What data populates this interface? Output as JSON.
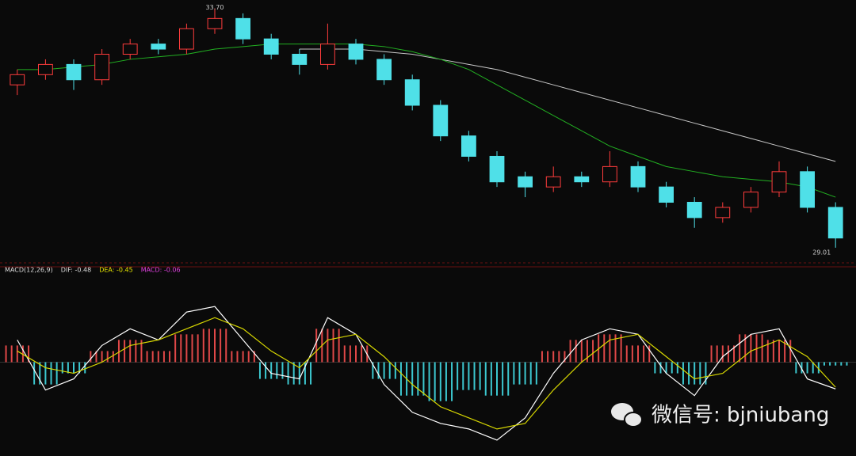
{
  "chart_data": [
    {
      "type": "candlestick",
      "open": [
        32.2,
        32.4,
        32.6,
        32.3,
        32.8,
        33.0,
        32.9,
        33.3,
        33.5,
        33.1,
        32.8,
        32.6,
        33.0,
        32.7,
        32.3,
        31.8,
        31.2,
        30.8,
        30.4,
        30.2,
        30.4,
        30.3,
        30.6,
        30.2,
        29.9,
        29.6,
        29.8,
        30.1,
        30.5,
        29.8
      ],
      "high": [
        32.5,
        32.7,
        32.7,
        32.9,
        33.1,
        33.1,
        33.4,
        33.7,
        33.6,
        33.2,
        32.9,
        33.4,
        33.1,
        32.8,
        32.4,
        31.9,
        31.3,
        30.9,
        30.5,
        30.6,
        30.5,
        30.9,
        30.7,
        30.3,
        30.0,
        29.9,
        30.2,
        30.7,
        30.6,
        29.9
      ],
      "low": [
        32.0,
        32.3,
        32.1,
        32.2,
        32.7,
        32.8,
        32.8,
        33.2,
        33.0,
        32.7,
        32.4,
        32.5,
        32.6,
        32.2,
        31.7,
        31.1,
        30.7,
        30.2,
        30.0,
        30.1,
        30.2,
        30.2,
        30.1,
        29.8,
        29.4,
        29.5,
        29.7,
        30.0,
        29.7,
        29.01
      ],
      "close": [
        32.4,
        32.6,
        32.3,
        32.8,
        33.0,
        32.9,
        33.3,
        33.5,
        33.1,
        32.8,
        32.6,
        33.0,
        32.7,
        32.3,
        31.8,
        31.2,
        30.8,
        30.3,
        30.2,
        30.4,
        30.3,
        30.6,
        30.2,
        29.9,
        29.6,
        29.8,
        30.1,
        30.5,
        29.8,
        29.2
      ],
      "up_color": "#ff3c3c",
      "down_color": "#4fe0e8",
      "ylim": [
        28.9,
        33.8
      ],
      "high_label": "33.70",
      "low_label": "29.01",
      "ma_series": [
        {
          "color": "#c8c8c8",
          "values": [
            null,
            null,
            null,
            null,
            null,
            null,
            null,
            null,
            null,
            null,
            32.9,
            32.9,
            32.9,
            32.85,
            32.8,
            32.7,
            32.6,
            32.5,
            32.35,
            32.2,
            32.05,
            31.9,
            31.75,
            31.6,
            31.45,
            31.3,
            31.15,
            31.0,
            30.85,
            30.7
          ]
        },
        {
          "color": "#22b022",
          "values": [
            32.5,
            32.5,
            32.55,
            32.6,
            32.7,
            32.75,
            32.8,
            32.9,
            32.95,
            33.0,
            33.0,
            33.0,
            33.0,
            32.95,
            32.85,
            32.7,
            32.5,
            32.2,
            31.9,
            31.6,
            31.3,
            31.0,
            30.8,
            30.6,
            30.5,
            30.4,
            30.35,
            30.3,
            30.2,
            30.0
          ]
        }
      ]
    },
    {
      "type": "macd",
      "legend": [
        {
          "text": "MACD(12,26,9)",
          "color": "#dddddd"
        },
        {
          "text": "DIF: -0.48",
          "color": "#dddddd"
        },
        {
          "text": "DEA: -0.45",
          "color": "#e6e600"
        },
        {
          "text": "MACD: -0.06",
          "color": "#e040e0"
        }
      ],
      "histogram": {
        "up_color": "#e04848",
        "down_color": "#3cc8d0",
        "values": [
          0.3,
          -0.4,
          -0.2,
          0.2,
          0.4,
          0.2,
          0.5,
          0.6,
          0.2,
          -0.3,
          -0.4,
          0.6,
          0.3,
          -0.3,
          -0.6,
          -0.7,
          -0.5,
          -0.6,
          -0.4,
          0.2,
          0.4,
          0.5,
          0.3,
          -0.2,
          -0.4,
          0.3,
          0.5,
          0.4,
          -0.2,
          -0.06
        ]
      },
      "lines": [
        {
          "color": "#ffffff",
          "values": [
            0.4,
            -0.5,
            -0.3,
            0.3,
            0.6,
            0.4,
            0.9,
            1.0,
            0.4,
            -0.2,
            -0.3,
            0.8,
            0.5,
            -0.4,
            -0.9,
            -1.1,
            -1.2,
            -1.4,
            -1.0,
            -0.2,
            0.4,
            0.6,
            0.5,
            -0.2,
            -0.6,
            0.1,
            0.5,
            0.6,
            -0.3,
            -0.48
          ]
        },
        {
          "color": "#d8d800",
          "values": [
            0.2,
            -0.1,
            -0.2,
            0.0,
            0.3,
            0.4,
            0.6,
            0.8,
            0.6,
            0.2,
            -0.1,
            0.4,
            0.5,
            0.1,
            -0.4,
            -0.8,
            -1.0,
            -1.2,
            -1.1,
            -0.5,
            0.0,
            0.4,
            0.5,
            0.1,
            -0.3,
            -0.2,
            0.2,
            0.4,
            0.1,
            -0.45
          ]
        }
      ],
      "ylim": [
        -1.6,
        1.6
      ],
      "watermark": "微信号: bjniubang"
    }
  ]
}
